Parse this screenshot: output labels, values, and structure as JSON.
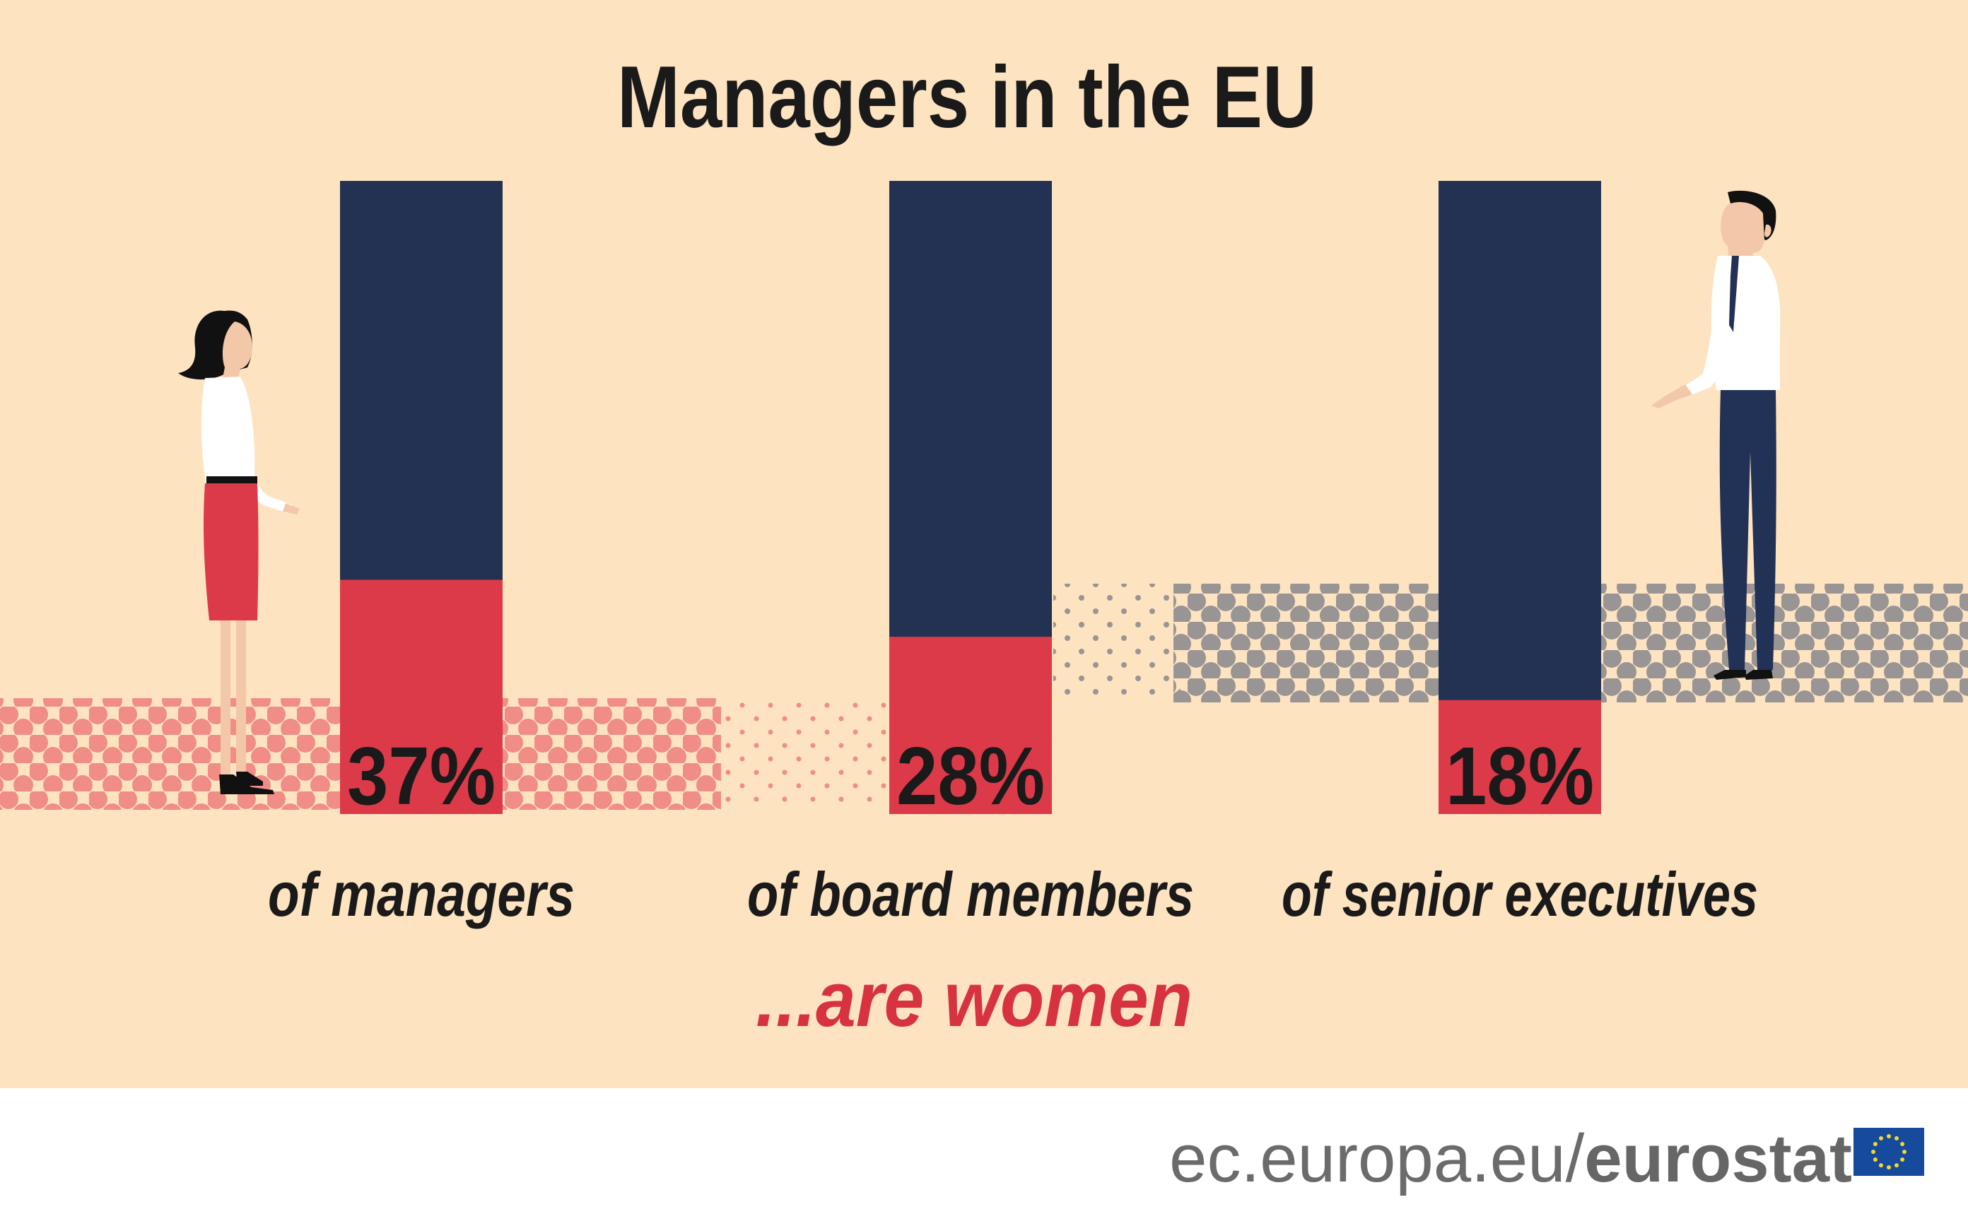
{
  "chart_data": {
    "type": "bar",
    "title": "Managers in the EU",
    "categories": [
      "of managers",
      "of board members",
      "of senior executives"
    ],
    "values": [
      37,
      28,
      18
    ],
    "value_labels": [
      "37%",
      "28%",
      "18%"
    ],
    "ylim": [
      0,
      100
    ],
    "grid": false,
    "legend": "none",
    "subtitle_bottom": "...are women"
  },
  "colors": {
    "background": "#fde3c0",
    "bar_total": "#233152",
    "bar_women": "#dc3a48",
    "text_dark": "#1a1a1a",
    "accent_red": "#d7323f",
    "footer_text": "#666666",
    "eu_blue": "#154a9d",
    "eu_star": "#f6d530",
    "pink_dots": "#f08d86",
    "grey_dots": "#9a9595"
  },
  "icons": {
    "woman": "woman-figure-icon",
    "man": "man-figure-icon",
    "eu_flag": "eu-flag-icon"
  },
  "footer": {
    "url_prefix": "ec.europa.eu/",
    "brand": "eurostat"
  }
}
